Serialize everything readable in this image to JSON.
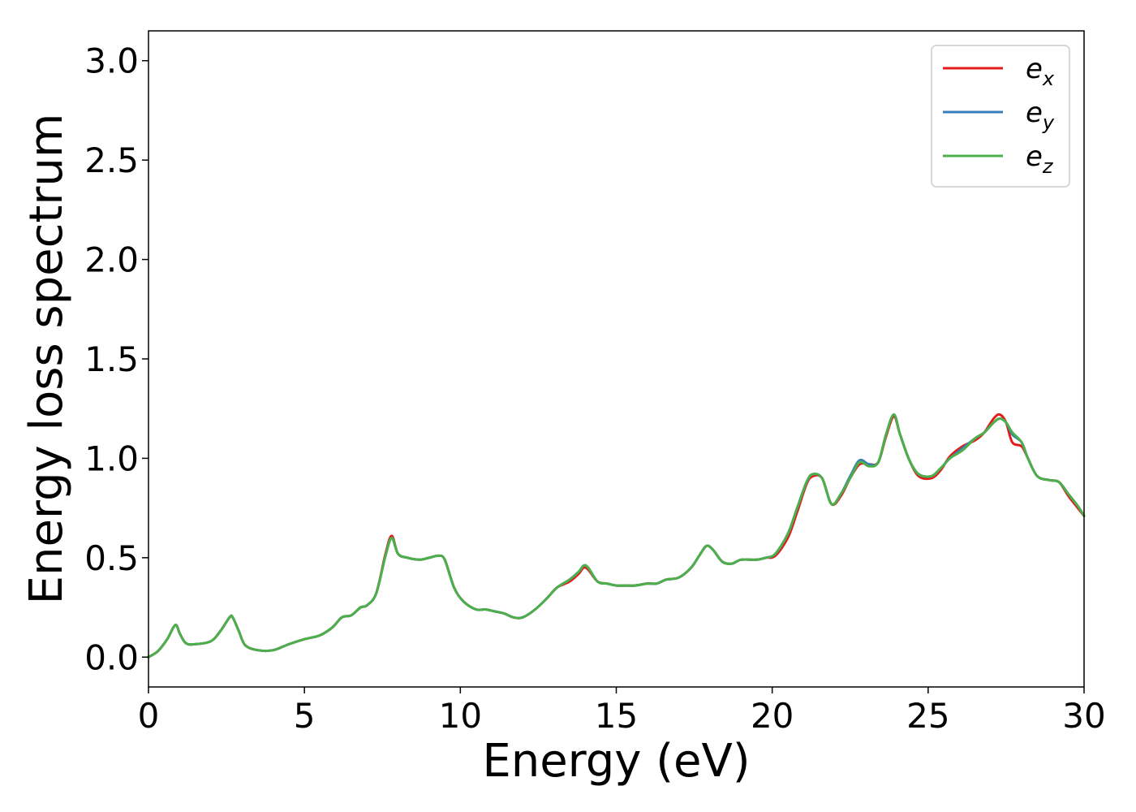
{
  "chart_data": {
    "type": "line",
    "title": "",
    "xlabel": "Energy (eV)",
    "ylabel": "Energy loss spectrum",
    "xlim": [
      0,
      30
    ],
    "ylim": [
      -0.15,
      3.15
    ],
    "xticks": [
      0,
      5,
      10,
      15,
      20,
      25,
      30
    ],
    "xtick_labels": [
      "0",
      "5",
      "10",
      "15",
      "20",
      "25",
      "30"
    ],
    "yticks": [
      0.0,
      0.5,
      1.0,
      1.5,
      2.0,
      2.5,
      3.0
    ],
    "ytick_labels": [
      "0.0",
      "0.5",
      "1.0",
      "1.5",
      "2.0",
      "2.5",
      "3.0"
    ],
    "grid": false,
    "legend_position": "top-right",
    "series": [
      {
        "name": "e_x",
        "name_base": "e",
        "name_sub": "x",
        "color": "#e41a1c",
        "x": [
          0,
          0.3,
          0.6,
          0.8,
          0.9,
          1.0,
          1.2,
          1.5,
          2.0,
          2.3,
          2.6,
          2.7,
          2.9,
          3.1,
          3.5,
          4.0,
          4.5,
          5.0,
          5.5,
          5.9,
          6.2,
          6.5,
          6.8,
          7.0,
          7.3,
          7.6,
          7.8,
          8.0,
          8.3,
          8.7,
          9.0,
          9.3,
          9.5,
          9.8,
          10.1,
          10.5,
          10.8,
          11.1,
          11.4,
          11.7,
          12.0,
          12.4,
          12.8,
          13.1,
          13.5,
          13.8,
          13.95,
          14.1,
          14.4,
          14.7,
          15.0,
          15.3,
          15.6,
          16.0,
          16.3,
          16.6,
          17.0,
          17.4,
          17.7,
          17.9,
          18.1,
          18.4,
          18.7,
          19.0,
          19.5,
          19.8,
          20.1,
          20.5,
          20.8,
          21.1,
          21.3,
          21.6,
          21.9,
          22.2,
          22.5,
          22.8,
          23.1,
          23.4,
          23.65,
          23.9,
          24.1,
          24.4,
          24.7,
          25.1,
          25.4,
          25.7,
          26.1,
          26.5,
          26.8,
          27.1,
          27.3,
          27.5,
          27.7,
          28.0,
          28.2,
          28.5,
          28.9,
          29.2,
          29.5,
          29.8,
          30.0
        ],
        "y": [
          0.0,
          0.03,
          0.09,
          0.15,
          0.16,
          0.12,
          0.07,
          0.065,
          0.08,
          0.13,
          0.2,
          0.2,
          0.13,
          0.06,
          0.035,
          0.035,
          0.065,
          0.09,
          0.11,
          0.15,
          0.2,
          0.21,
          0.25,
          0.26,
          0.32,
          0.52,
          0.61,
          0.52,
          0.5,
          0.49,
          0.5,
          0.51,
          0.49,
          0.35,
          0.28,
          0.24,
          0.24,
          0.23,
          0.22,
          0.2,
          0.2,
          0.24,
          0.3,
          0.35,
          0.38,
          0.42,
          0.45,
          0.44,
          0.38,
          0.37,
          0.36,
          0.36,
          0.36,
          0.37,
          0.37,
          0.39,
          0.4,
          0.45,
          0.52,
          0.56,
          0.54,
          0.48,
          0.47,
          0.49,
          0.49,
          0.5,
          0.51,
          0.6,
          0.73,
          0.87,
          0.91,
          0.9,
          0.77,
          0.81,
          0.9,
          0.97,
          0.97,
          0.98,
          1.11,
          1.21,
          1.12,
          0.99,
          0.91,
          0.9,
          0.94,
          1.01,
          1.06,
          1.09,
          1.13,
          1.2,
          1.22,
          1.18,
          1.08,
          1.06,
          1.0,
          0.91,
          0.89,
          0.88,
          0.81,
          0.75,
          0.71
        ]
      },
      {
        "name": "e_y",
        "name_base": "e",
        "name_sub": "y",
        "color": "#377eb8",
        "x": [
          0,
          0.3,
          0.6,
          0.8,
          0.9,
          1.0,
          1.2,
          1.5,
          2.0,
          2.3,
          2.6,
          2.7,
          2.9,
          3.1,
          3.5,
          4.0,
          4.5,
          5.0,
          5.5,
          5.9,
          6.2,
          6.5,
          6.8,
          7.0,
          7.3,
          7.6,
          7.8,
          8.0,
          8.3,
          8.7,
          9.0,
          9.3,
          9.5,
          9.8,
          10.1,
          10.5,
          10.8,
          11.1,
          11.4,
          11.7,
          12.0,
          12.4,
          12.8,
          13.1,
          13.5,
          13.8,
          13.95,
          14.1,
          14.4,
          14.7,
          15.0,
          15.3,
          15.6,
          16.0,
          16.3,
          16.6,
          17.0,
          17.4,
          17.7,
          17.9,
          18.1,
          18.4,
          18.7,
          19.0,
          19.5,
          19.8,
          20.1,
          20.5,
          20.8,
          21.1,
          21.3,
          21.6,
          21.9,
          22.2,
          22.5,
          22.8,
          23.1,
          23.4,
          23.65,
          23.9,
          24.1,
          24.4,
          24.7,
          25.1,
          25.4,
          25.7,
          26.1,
          26.5,
          26.8,
          27.1,
          27.3,
          27.5,
          27.7,
          28.0,
          28.2,
          28.5,
          28.9,
          29.2,
          29.5,
          29.8,
          30.0
        ],
        "y": [
          0.0,
          0.03,
          0.09,
          0.15,
          0.16,
          0.12,
          0.07,
          0.065,
          0.08,
          0.13,
          0.2,
          0.2,
          0.13,
          0.06,
          0.035,
          0.035,
          0.065,
          0.09,
          0.11,
          0.15,
          0.2,
          0.21,
          0.25,
          0.26,
          0.32,
          0.51,
          0.6,
          0.52,
          0.5,
          0.49,
          0.5,
          0.51,
          0.49,
          0.35,
          0.28,
          0.24,
          0.24,
          0.23,
          0.22,
          0.2,
          0.2,
          0.24,
          0.3,
          0.35,
          0.39,
          0.43,
          0.46,
          0.45,
          0.38,
          0.37,
          0.36,
          0.36,
          0.36,
          0.37,
          0.37,
          0.39,
          0.4,
          0.45,
          0.52,
          0.56,
          0.54,
          0.48,
          0.47,
          0.49,
          0.49,
          0.5,
          0.52,
          0.62,
          0.75,
          0.88,
          0.92,
          0.9,
          0.77,
          0.82,
          0.91,
          0.99,
          0.97,
          0.98,
          1.12,
          1.22,
          1.12,
          0.99,
          0.92,
          0.91,
          0.95,
          1.0,
          1.05,
          1.1,
          1.13,
          1.18,
          1.2,
          1.18,
          1.12,
          1.08,
          1.0,
          0.91,
          0.89,
          0.88,
          0.82,
          0.76,
          0.71
        ]
      },
      {
        "name": "e_z",
        "name_base": "e",
        "name_sub": "z",
        "color": "#4daf4a",
        "x": [
          0,
          0.3,
          0.6,
          0.8,
          0.9,
          1.0,
          1.2,
          1.5,
          2.0,
          2.3,
          2.6,
          2.7,
          2.9,
          3.1,
          3.5,
          4.0,
          4.5,
          5.0,
          5.5,
          5.9,
          6.2,
          6.5,
          6.8,
          7.0,
          7.3,
          7.6,
          7.8,
          8.0,
          8.3,
          8.7,
          9.0,
          9.3,
          9.5,
          9.8,
          10.1,
          10.5,
          10.8,
          11.1,
          11.4,
          11.7,
          12.0,
          12.4,
          12.8,
          13.1,
          13.5,
          13.8,
          13.95,
          14.1,
          14.4,
          14.7,
          15.0,
          15.3,
          15.6,
          16.0,
          16.3,
          16.6,
          17.0,
          17.4,
          17.7,
          17.9,
          18.1,
          18.4,
          18.7,
          19.0,
          19.5,
          19.8,
          20.1,
          20.5,
          20.8,
          21.1,
          21.3,
          21.6,
          21.9,
          22.2,
          22.5,
          22.8,
          23.1,
          23.4,
          23.65,
          23.9,
          24.1,
          24.4,
          24.7,
          25.1,
          25.4,
          25.7,
          26.1,
          26.5,
          26.8,
          27.1,
          27.3,
          27.5,
          27.7,
          28.0,
          28.2,
          28.5,
          28.9,
          29.2,
          29.5,
          29.8,
          30.0
        ],
        "y": [
          0.0,
          0.03,
          0.09,
          0.15,
          0.16,
          0.12,
          0.07,
          0.065,
          0.08,
          0.13,
          0.2,
          0.2,
          0.13,
          0.06,
          0.035,
          0.035,
          0.065,
          0.09,
          0.11,
          0.15,
          0.2,
          0.21,
          0.25,
          0.26,
          0.32,
          0.51,
          0.6,
          0.52,
          0.5,
          0.49,
          0.5,
          0.51,
          0.49,
          0.35,
          0.28,
          0.24,
          0.24,
          0.23,
          0.22,
          0.2,
          0.2,
          0.24,
          0.3,
          0.35,
          0.39,
          0.43,
          0.46,
          0.45,
          0.38,
          0.37,
          0.36,
          0.36,
          0.36,
          0.37,
          0.37,
          0.39,
          0.4,
          0.45,
          0.52,
          0.56,
          0.54,
          0.48,
          0.47,
          0.49,
          0.49,
          0.5,
          0.52,
          0.62,
          0.75,
          0.88,
          0.92,
          0.9,
          0.77,
          0.82,
          0.9,
          0.98,
          0.96,
          0.98,
          1.12,
          1.22,
          1.12,
          0.99,
          0.92,
          0.91,
          0.95,
          1.0,
          1.04,
          1.1,
          1.13,
          1.18,
          1.2,
          1.18,
          1.13,
          1.08,
          1.0,
          0.91,
          0.89,
          0.88,
          0.82,
          0.76,
          0.71
        ]
      }
    ]
  }
}
